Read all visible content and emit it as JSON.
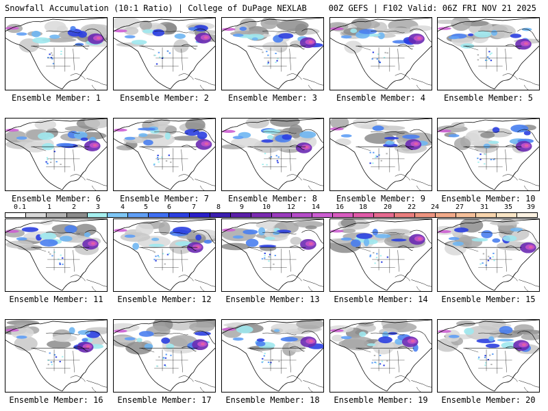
{
  "header": {
    "title_left": "Snowfall Accumulation (10:1 Ratio) | College of DuPage NEXLAB",
    "title_right": "00Z GEFS | F102 Valid: 06Z FRI NOV 21 2025"
  },
  "colorbar": {
    "labels": [
      "0.1",
      "1",
      "2",
      "3",
      "4",
      "5",
      "6",
      "7",
      "8",
      "9",
      "10",
      "12",
      "14",
      "16",
      "18",
      "20",
      "22",
      "24",
      "27",
      "31",
      "35",
      "39"
    ],
    "colors": [
      "#ffffff",
      "#d9d9d9",
      "#b3b3b3",
      "#8c8c8c",
      "#a6f0f0",
      "#7ec6f5",
      "#5f9ef5",
      "#3f6ff2",
      "#2b3fe0",
      "#2a1fc8",
      "#3b1faf",
      "#5a1fa8",
      "#7a2ab0",
      "#9a3bbd",
      "#b54cc8",
      "#cc5ed2",
      "#d85cc0",
      "#e05aa8",
      "#e66a90",
      "#ea7e7e",
      "#ee9480",
      "#f2aa8a",
      "#f5c09a",
      "#f8d5ad",
      "#fae6c6",
      "#fdf3e3"
    ]
  },
  "members": [
    {
      "label": "Ensemble Member: 1"
    },
    {
      "label": "Ensemble Member: 2"
    },
    {
      "label": "Ensemble Member: 3"
    },
    {
      "label": "Ensemble Member: 4"
    },
    {
      "label": "Ensemble Member: 5"
    },
    {
      "label": "Ensemble Member: 6"
    },
    {
      "label": "Ensemble Member: 7"
    },
    {
      "label": "Ensemble Member: 8"
    },
    {
      "label": "Ensemble Member: 9"
    },
    {
      "label": "Ensemble Member: 10"
    },
    {
      "label": "Ensemble Member: 11"
    },
    {
      "label": "Ensemble Member: 12"
    },
    {
      "label": "Ensemble Member: 13"
    },
    {
      "label": "Ensemble Member: 14"
    },
    {
      "label": "Ensemble Member: 15"
    },
    {
      "label": "Ensemble Member: 16"
    },
    {
      "label": "Ensemble Member: 17"
    },
    {
      "label": "Ensemble Member: 18"
    },
    {
      "label": "Ensemble Member: 19"
    },
    {
      "label": "Ensemble Member: 20"
    }
  ]
}
